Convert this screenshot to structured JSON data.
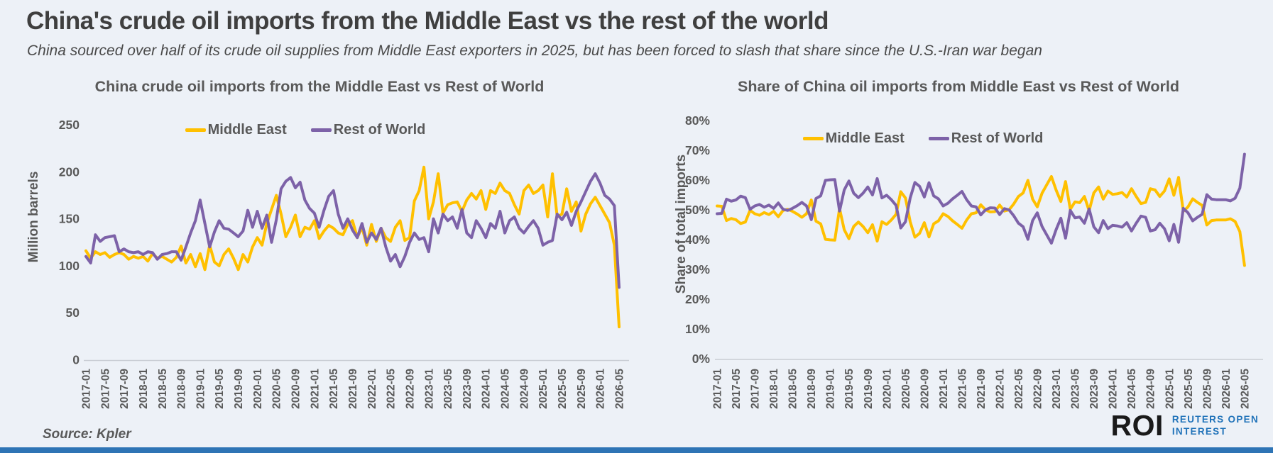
{
  "header": {
    "title": "China's crude oil imports from the Middle East vs the rest of the world",
    "subtitle": "China sourced over half of its crude oil supplies from Middle East exporters in 2025, but has been forced to slash that share since the U.S.-Iran war began"
  },
  "colors": {
    "background": "#EDF1F7",
    "middle_east": "#FFC000",
    "rest_of_world": "#7D62A8",
    "axis_line": "#C9CDD4",
    "tick_text": "#595959",
    "roi_dark": "#1A1A1A",
    "roi_blue": "#2173B9",
    "bottom_bar": "#2E74B5"
  },
  "months": [
    "2017-01",
    "2017-02",
    "2017-03",
    "2017-04",
    "2017-05",
    "2017-06",
    "2017-07",
    "2017-08",
    "2017-09",
    "2017-10",
    "2017-11",
    "2017-12",
    "2018-01",
    "2018-02",
    "2018-03",
    "2018-04",
    "2018-05",
    "2018-06",
    "2018-07",
    "2018-08",
    "2018-09",
    "2018-10",
    "2018-11",
    "2018-12",
    "2019-01",
    "2019-02",
    "2019-03",
    "2019-04",
    "2019-05",
    "2019-06",
    "2019-07",
    "2019-08",
    "2019-09",
    "2019-10",
    "2019-11",
    "2019-12",
    "2020-01",
    "2020-02",
    "2020-03",
    "2020-04",
    "2020-05",
    "2020-06",
    "2020-07",
    "2020-08",
    "2020-09",
    "2020-10",
    "2020-11",
    "2020-12",
    "2021-01",
    "2021-02",
    "2021-03",
    "2021-04",
    "2021-05",
    "2021-06",
    "2021-07",
    "2021-08",
    "2021-09",
    "2021-10",
    "2021-11",
    "2021-12",
    "2022-01",
    "2022-02",
    "2022-03",
    "2022-04",
    "2022-05",
    "2022-06",
    "2022-07",
    "2022-08",
    "2022-09",
    "2022-10",
    "2022-11",
    "2022-12",
    "2023-01",
    "2023-02",
    "2023-03",
    "2023-04",
    "2023-05",
    "2023-06",
    "2023-07",
    "2023-08",
    "2023-09",
    "2023-10",
    "2023-11",
    "2023-12",
    "2024-01",
    "2024-02",
    "2024-03",
    "2024-04",
    "2024-05",
    "2024-06",
    "2024-07",
    "2024-08",
    "2024-09",
    "2024-10",
    "2024-11",
    "2024-12",
    "2025-01",
    "2025-02",
    "2025-03",
    "2025-04",
    "2025-05",
    "2025-06",
    "2025-07",
    "2025-08",
    "2025-09",
    "2025-10",
    "2025-11",
    "2025-12",
    "2026-01",
    "2026-02",
    "2026-03",
    "2026-04",
    "2026-05"
  ],
  "x_tick_every": 4,
  "chart_data": [
    {
      "type": "line",
      "title": "China crude oil imports from the Middle East vs Rest of World",
      "ylabel": "Million barrels",
      "ylim": [
        0,
        250
      ],
      "grid": false,
      "legend_position": "top",
      "y_ticks": {
        "values": [
          0,
          50,
          100,
          150,
          200,
          250
        ],
        "labels": [
          "0",
          "50",
          "100",
          "150",
          "200",
          "250"
        ]
      },
      "series": [
        {
          "name": "Middle East",
          "color": "#FFC000",
          "values": [
            116,
            108,
            115,
            112,
            114,
            109,
            112,
            114,
            112,
            107,
            110,
            108,
            110,
            105,
            113,
            108,
            110,
            107,
            104,
            109,
            121,
            103,
            112,
            99,
            113,
            96,
            122,
            104,
            100,
            112,
            118,
            108,
            96,
            112,
            104,
            120,
            130,
            122,
            145,
            160,
            175,
            155,
            131,
            141,
            154,
            131,
            141,
            139,
            148,
            129,
            137,
            143,
            140,
            135,
            133,
            144,
            148,
            130,
            141,
            122,
            144,
            126,
            140,
            130,
            126,
            141,
            148,
            127,
            130,
            169,
            180,
            205,
            150,
            168,
            198,
            156,
            165,
            167,
            168,
            158,
            170,
            177,
            171,
            180,
            160,
            180,
            177,
            188,
            180,
            177,
            165,
            155,
            180,
            186,
            177,
            180,
            186,
            152,
            198,
            152,
            155,
            182,
            158,
            168,
            137,
            155,
            166,
            173,
            164,
            155,
            146,
            122,
            35
          ]
        },
        {
          "name": "Rest of World",
          "color": "#7D62A8",
          "values": [
            110,
            103,
            133,
            126,
            130,
            131,
            132,
            115,
            118,
            115,
            114,
            115,
            112,
            115,
            114,
            107,
            112,
            113,
            115,
            115,
            106,
            120,
            135,
            148,
            170,
            145,
            120,
            136,
            148,
            140,
            139,
            135,
            131,
            137,
            159,
            141,
            158,
            140,
            154,
            125,
            149,
            182,
            190,
            194,
            183,
            189,
            170,
            161,
            156,
            141,
            159,
            174,
            180,
            155,
            140,
            150,
            138,
            130,
            145,
            125,
            135,
            128,
            140,
            120,
            105,
            112,
            99,
            110,
            125,
            135,
            128,
            130,
            115,
            150,
            135,
            155,
            148,
            152,
            140,
            160,
            135,
            130,
            148,
            140,
            130,
            145,
            140,
            158,
            135,
            148,
            152,
            140,
            135,
            142,
            148,
            140,
            122,
            125,
            127,
            155,
            149,
            157,
            143,
            158,
            168,
            179,
            190,
            198,
            188,
            175,
            171,
            164,
            77
          ]
        }
      ]
    },
    {
      "type": "line",
      "title": "Share of China oil imports from Middle East vs  Rest of World",
      "ylabel": "Share of total imports",
      "ylim": [
        0,
        80
      ],
      "grid": false,
      "legend_position": "top",
      "y_ticks": {
        "values": [
          0,
          10,
          20,
          30,
          40,
          50,
          60,
          70,
          80
        ],
        "labels": [
          "0%",
          "10%",
          "20%",
          "30%",
          "40%",
          "50%",
          "60%",
          "70%",
          "80%"
        ]
      },
      "series": [
        {
          "name": "Middle East",
          "color": "#FFC000",
          "values": [
            51.3,
            51.2,
            46.4,
            47.1,
            46.7,
            45.4,
            45.9,
            49.8,
            48.7,
            48.2,
            49.1,
            48.4,
            49.5,
            47.7,
            49.8,
            50.2,
            49.5,
            48.6,
            47.5,
            48.7,
            53.3,
            46.2,
            45.3,
            40.1,
            39.9,
            39.8,
            50.4,
            43.3,
            40.3,
            44.4,
            45.9,
            44.4,
            42.3,
            45.0,
            39.5,
            46.0,
            45.1,
            46.6,
            48.5,
            56.1,
            54.0,
            46.0,
            40.8,
            42.1,
            45.7,
            40.9,
            45.3,
            46.3,
            48.7,
            47.8,
            46.3,
            45.1,
            43.8,
            46.6,
            48.7,
            49.0,
            51.7,
            50.0,
            49.3,
            49.4,
            51.6,
            49.6,
            50.0,
            52.0,
            54.5,
            55.7,
            59.9,
            53.6,
            51.0,
            55.6,
            58.4,
            61.2,
            56.6,
            52.8,
            59.5,
            50.2,
            52.7,
            52.4,
            54.5,
            49.7,
            55.7,
            57.7,
            53.6,
            56.3,
            55.2,
            55.4,
            55.8,
            54.3,
            57.1,
            54.5,
            52.1,
            52.5,
            57.1,
            56.7,
            54.5,
            56.3,
            60.4,
            54.9,
            60.9,
            49.5,
            51.0,
            53.7,
            52.5,
            51.5,
            44.9,
            46.4,
            46.6,
            46.6,
            46.6,
            47.0,
            46.1,
            42.7,
            31.3
          ]
        },
        {
          "name": "Rest of World",
          "color": "#7D62A8",
          "values": [
            48.7,
            48.8,
            53.6,
            52.9,
            53.3,
            54.6,
            54.1,
            50.2,
            51.3,
            51.8,
            50.9,
            51.6,
            50.5,
            52.3,
            50.2,
            49.8,
            50.5,
            51.4,
            52.5,
            51.3,
            46.7,
            53.8,
            54.7,
            59.9,
            60.1,
            60.2,
            49.6,
            56.7,
            59.7,
            55.6,
            54.1,
            55.6,
            57.7,
            55.0,
            60.5,
            54.0,
            54.9,
            53.4,
            51.5,
            43.9,
            46.0,
            54.0,
            59.2,
            57.9,
            54.3,
            59.1,
            54.7,
            53.7,
            51.3,
            52.2,
            53.7,
            54.9,
            56.2,
            53.4,
            51.3,
            51.0,
            48.3,
            50.0,
            50.7,
            50.6,
            48.4,
            50.4,
            50.0,
            48.0,
            45.5,
            44.3,
            40.1,
            46.4,
            49.0,
            44.4,
            41.6,
            38.8,
            43.4,
            47.2,
            40.5,
            49.8,
            47.3,
            47.6,
            45.5,
            50.3,
            44.3,
            42.3,
            46.4,
            43.7,
            44.8,
            44.6,
            44.2,
            45.7,
            42.9,
            45.5,
            47.9,
            47.5,
            42.9,
            43.3,
            45.5,
            43.7,
            39.6,
            45.1,
            39.1,
            50.5,
            49.0,
            46.3,
            47.5,
            48.5,
            55.1,
            53.6,
            53.4,
            53.4,
            53.4,
            53.0,
            53.9,
            57.3,
            68.7
          ]
        }
      ]
    }
  ],
  "footer": {
    "source": "Source:  Kpler",
    "roi": {
      "abbr": "ROI",
      "line1": "REUTERS OPEN",
      "line2": "INTEREST"
    }
  }
}
